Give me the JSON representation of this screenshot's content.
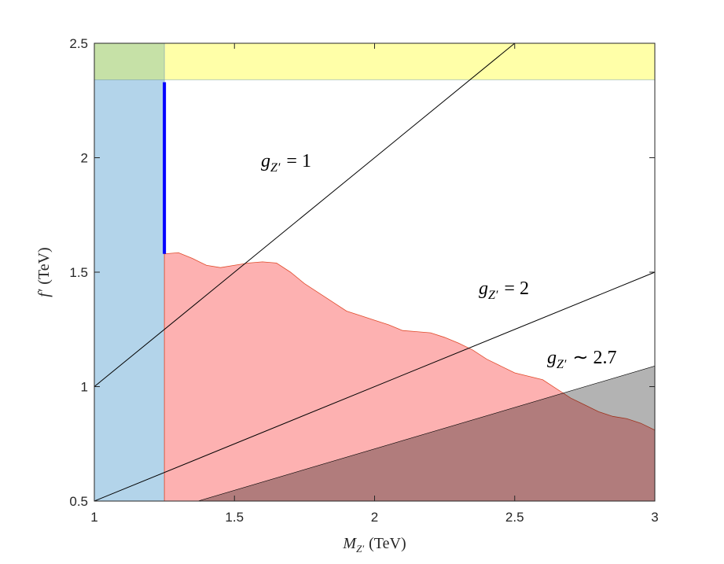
{
  "chart_data": {
    "type": "area",
    "xlim": [
      1,
      3
    ],
    "ylim": [
      0.5,
      2.5
    ],
    "xticks": [
      1,
      1.5,
      2,
      2.5,
      3
    ],
    "yticks": [
      0.5,
      1,
      1.5,
      2,
      2.5
    ],
    "xlabel": {
      "main": "M",
      "sub": "Z′",
      "rest": "(TeV)"
    },
    "ylabel": {
      "main": "f′",
      "rest": "(TeV)"
    },
    "regions": [
      {
        "color": "#b3d4ea",
        "x": [
          1,
          1.25
        ],
        "y": [
          0.5,
          2.34
        ]
      },
      {
        "color": "#c6e1a7",
        "x": [
          1,
          1.25
        ],
        "y": [
          2.34,
          2.5
        ]
      },
      {
        "color": "#ffffa8",
        "x": [
          1.25,
          3
        ],
        "y": [
          2.34,
          2.5
        ]
      }
    ],
    "excluded": {
      "color": "#fdb1b1",
      "edge": "#e04a2a",
      "x": [
        1.25,
        1.3,
        1.35,
        1.4,
        1.45,
        1.5,
        1.55,
        1.6,
        1.65,
        1.7,
        1.75,
        1.8,
        1.85,
        1.9,
        1.95,
        2.0,
        2.05,
        2.1,
        2.15,
        2.2,
        2.25,
        2.3,
        2.35,
        2.4,
        2.45,
        2.5,
        2.55,
        2.6,
        2.65,
        2.7,
        2.75,
        2.8,
        2.85,
        2.9,
        2.95,
        3.0
      ],
      "y": [
        1.58,
        1.585,
        1.56,
        1.53,
        1.52,
        1.53,
        1.54,
        1.545,
        1.54,
        1.5,
        1.45,
        1.41,
        1.37,
        1.33,
        1.31,
        1.29,
        1.27,
        1.245,
        1.24,
        1.235,
        1.215,
        1.19,
        1.16,
        1.12,
        1.09,
        1.06,
        1.045,
        1.03,
        0.99,
        0.95,
        0.92,
        0.89,
        0.87,
        0.86,
        0.84,
        0.81
      ]
    },
    "nonperturbative": {
      "color": "#b3b3b3",
      "x": [
        1.37,
        3
      ],
      "y": [
        0.5,
        1.09
      ]
    },
    "bound": {
      "color": "#0000ff",
      "x": [
        1.25,
        1.25
      ],
      "y": [
        1.58,
        2.33
      ]
    },
    "series": [
      {
        "color": "#000000",
        "x": [
          1,
          2.5
        ],
        "y": [
          1,
          2.5
        ]
      },
      {
        "color": "#000000",
        "x": [
          1,
          3
        ],
        "y": [
          0.5,
          1.5
        ]
      }
    ],
    "annotations": [
      {
        "main": "g",
        "sub": "Z′",
        "rest": "= 1"
      },
      {
        "main": "g",
        "sub": "Z′",
        "rest": "= 2"
      },
      {
        "main": "g",
        "sub": "Z′",
        "rest": "∼ 2.7"
      }
    ]
  }
}
